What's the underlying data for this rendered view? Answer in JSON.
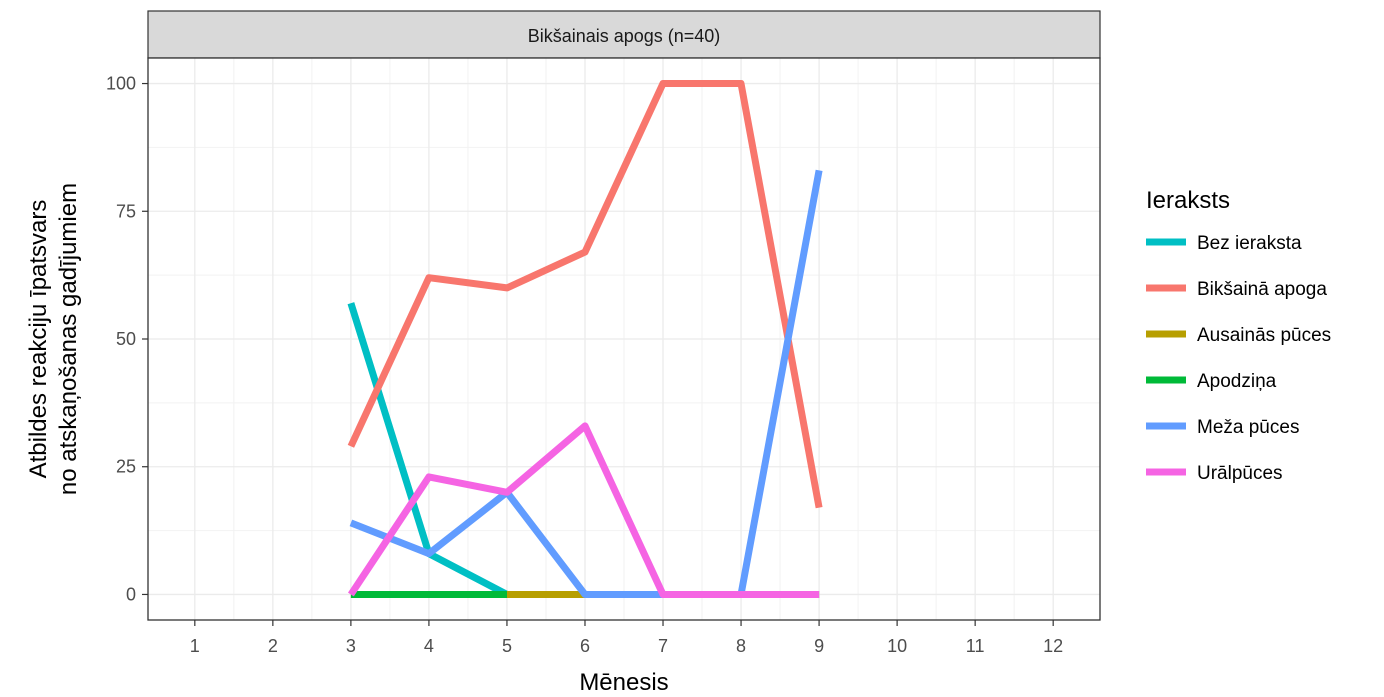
{
  "chart_data": {
    "type": "line",
    "title": "",
    "facet_label": "Bikšainais apogs (n=40)",
    "xlabel": "Mēnesis",
    "ylabel_lines": [
      "Atbildes reakciju īpatsvars",
      "no atskaņošanas gadījumiem"
    ],
    "x_ticks": [
      1,
      2,
      3,
      4,
      5,
      6,
      7,
      8,
      9,
      10,
      11,
      12
    ],
    "y_ticks": [
      0,
      25,
      50,
      75,
      100
    ],
    "xlim": [
      0.4,
      12.6
    ],
    "ylim": [
      -5,
      105
    ],
    "grid": true,
    "legend_title": "Ieraksts",
    "legend_position": "right",
    "series": [
      {
        "name": "Bez ieraksta",
        "color": "#00BFC4",
        "x": [
          3,
          4,
          5,
          6,
          7,
          8,
          9
        ],
        "values": [
          57,
          8,
          0,
          0,
          0,
          0,
          0
        ]
      },
      {
        "name": "Bikšainā apoga",
        "color": "#F8766D",
        "x": [
          3,
          4,
          5,
          6,
          7,
          8,
          9
        ],
        "values": [
          29,
          62,
          60,
          67,
          100,
          100,
          17
        ]
      },
      {
        "name": "Ausainās pūces",
        "color": "#B79F00",
        "x": [
          3,
          4,
          5,
          6,
          7,
          8,
          9
        ],
        "values": [
          0,
          0,
          0,
          0,
          0,
          0,
          0
        ]
      },
      {
        "name": "Apodziņa",
        "color": "#00BA38",
        "x": [
          3,
          4,
          5
        ],
        "values": [
          0,
          0,
          0
        ]
      },
      {
        "name": "Meža pūces",
        "color": "#619CFF",
        "x": [
          3,
          4,
          5,
          6,
          7,
          8,
          9
        ],
        "values": [
          14,
          8,
          20,
          0,
          0,
          0,
          83
        ]
      },
      {
        "name": "Urālpūces",
        "color": "#F564E3",
        "x": [
          3,
          4,
          5,
          6,
          7,
          8,
          9
        ],
        "values": [
          0,
          23,
          20,
          33,
          0,
          0,
          0
        ]
      }
    ]
  }
}
